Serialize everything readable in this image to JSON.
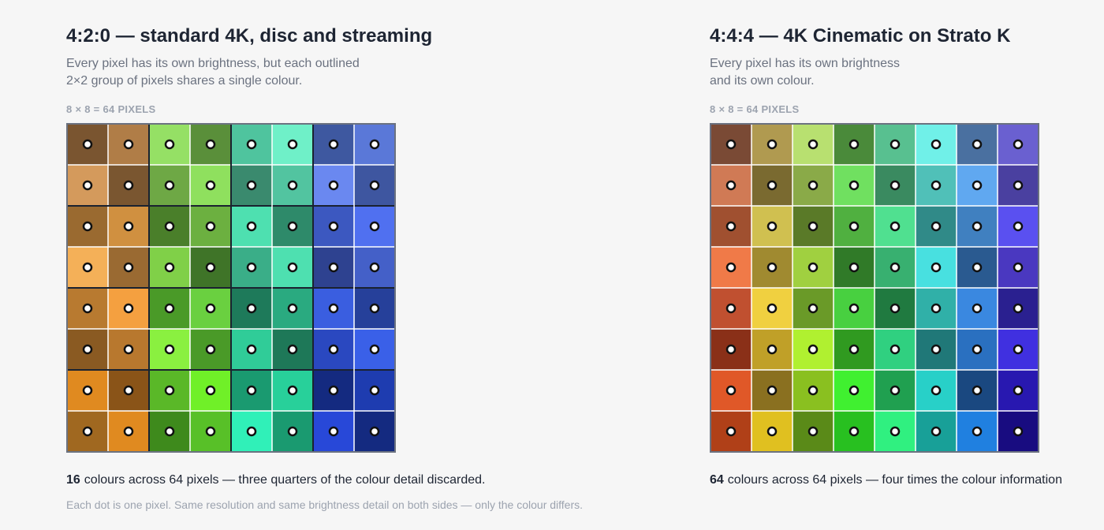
{
  "panels": [
    {
      "title": "4:2:0 — standard 4K, disc and streaming",
      "description": [
        "Every pixel has its own brightness, but each outlined",
        "2×2 group of pixels shares a single colour."
      ],
      "grid_label": "8 × 8 = 64 PIXELS",
      "grouped": true,
      "colors": [
        [
          "#7a5530",
          "#b07d47",
          "#95e065",
          "#5a8f3a",
          "#4fc49e",
          "#6ff0c8",
          "#3e58a0",
          "#5a78d8"
        ],
        [
          "#d49a5c",
          "#7a5630",
          "#6ea845",
          "#8fe05e",
          "#3a8a6e",
          "#52c4a0",
          "#6a88f0",
          "#3e56a0"
        ],
        [
          "#9a6a30",
          "#d09040",
          "#4a7f2a",
          "#6cb040",
          "#4ee0b0",
          "#2e8a6a",
          "#3c58c0",
          "#5070f0"
        ],
        [
          "#f4b058",
          "#9a6a32",
          "#80d048",
          "#3f7428",
          "#3aae88",
          "#4ee0b0",
          "#2e4290",
          "#4460c8"
        ],
        [
          "#b87a30",
          "#f4a040",
          "#4a9a28",
          "#6ad040",
          "#1e7a5a",
          "#2aaa80",
          "#3a5ee0",
          "#26409a"
        ],
        [
          "#8a5a22",
          "#b8782e",
          "#8af040",
          "#4a9a28",
          "#30cc98",
          "#1e7858",
          "#2a48c0",
          "#3a60e8"
        ],
        [
          "#e08a20",
          "#8a5418",
          "#5ab828",
          "#70f028",
          "#1a9a70",
          "#28d09a",
          "#142a80",
          "#1e3cb0"
        ],
        [
          "#a06820",
          "#e08a20",
          "#3e8a1c",
          "#58c028",
          "#30f0b8",
          "#1a9a70",
          "#2848d8",
          "#142a80"
        ]
      ],
      "caption": {
        "count": 16,
        "text": "colours across 64 pixels — three quarters of the colour detail discarded."
      }
    },
    {
      "title": "4:4:4 — 4K Cinematic on Strato K",
      "description": [
        "Every pixel has its own brightness",
        "and its own colour."
      ],
      "grid_label": "8 × 8 = 64 PIXELS",
      "grouped": false,
      "colors": [
        [
          "#7a4a35",
          "#b09a50",
          "#b8e070",
          "#4a8a3a",
          "#58c090",
          "#70f0e8",
          "#4a70a0",
          "#6a60d0"
        ],
        [
          "#d07a55",
          "#7a6a30",
          "#8aaa48",
          "#70e060",
          "#3a8a60",
          "#50c0b8",
          "#60a8f0",
          "#4a40a0"
        ],
        [
          "#a05030",
          "#d0c050",
          "#5a7a28",
          "#50b040",
          "#50e090",
          "#308a88",
          "#4080c0",
          "#5a50f0"
        ],
        [
          "#f07a48",
          "#a08a30",
          "#a0d040",
          "#307a28",
          "#38b070",
          "#48e0e0",
          "#2a5a90",
          "#4a38c0"
        ],
        [
          "#c05030",
          "#f0d040",
          "#6a9a28",
          "#48d040",
          "#207a40",
          "#30b0a8",
          "#3a88e0",
          "#2a2090"
        ],
        [
          "#8a3018",
          "#c0a028",
          "#b0f030",
          "#309a20",
          "#30d080",
          "#207878",
          "#2a70c0",
          "#4030e0"
        ],
        [
          "#e05828",
          "#8a7020",
          "#8ac020",
          "#40f030",
          "#20a050",
          "#28d0c8",
          "#1a4880",
          "#2818b0"
        ],
        [
          "#b04018",
          "#e0c020",
          "#5a8a18",
          "#28c020",
          "#30f080",
          "#18a098",
          "#2080e0",
          "#180c80"
        ]
      ],
      "caption": {
        "count": 64,
        "text": "colours across 64 pixels — four times the colour information"
      }
    }
  ],
  "footnote": "Each dot is one pixel. Same resolution and same brightness detail on both sides — only the colour differs."
}
